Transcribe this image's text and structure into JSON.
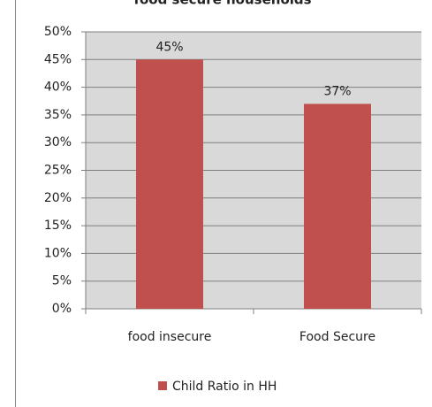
{
  "chart_data": {
    "type": "bar",
    "title": "food secure households",
    "categories": [
      "food insecure",
      "Food Secure"
    ],
    "series": [
      {
        "name": "Child Ratio in HH",
        "color": "#c0504d",
        "values": [
          45,
          37
        ],
        "value_labels": [
          "45%",
          "37%"
        ]
      }
    ],
    "ylim": [
      0,
      50
    ],
    "yticks": [
      {
        "value": 0,
        "label": "0%"
      },
      {
        "value": 5,
        "label": "5%"
      },
      {
        "value": 10,
        "label": "10%"
      },
      {
        "value": 15,
        "label": "15%"
      },
      {
        "value": 20,
        "label": "20%"
      },
      {
        "value": 25,
        "label": "25%"
      },
      {
        "value": 30,
        "label": "30%"
      },
      {
        "value": 35,
        "label": "35%"
      },
      {
        "value": 40,
        "label": "40%"
      },
      {
        "value": 45,
        "label": "45%"
      },
      {
        "value": 50,
        "label": "50%"
      }
    ],
    "grid": true,
    "legend": "bottom"
  }
}
